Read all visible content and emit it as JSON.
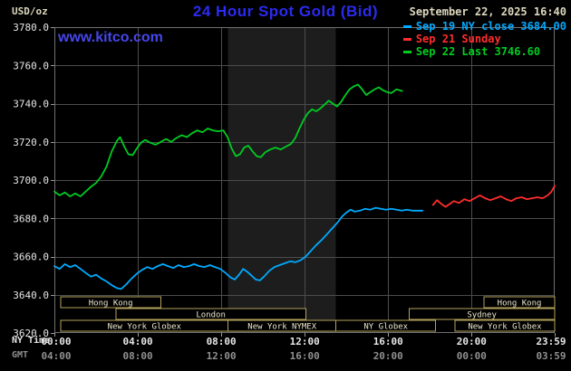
{
  "header": {
    "unit": "USD/oz",
    "title": "24 Hour Spot Gold (Bid)",
    "datetime": "September 22, 2025 16:40",
    "watermark": "www.kitco.com"
  },
  "legend": {
    "items": [
      {
        "label": "Sep 19 NY close 3684.00",
        "color": "#00aaff"
      },
      {
        "label": "Sep 21 Sunday",
        "color": "#ff2d2d"
      },
      {
        "label": "Sep 22 Last 3746.60",
        "color": "#00cc22"
      }
    ]
  },
  "axes": {
    "ny_label": "NY Time",
    "gmt_label": "GMT",
    "ny_ticks": [
      {
        "hour": 0,
        "label": "00:00"
      },
      {
        "hour": 4,
        "label": "04:00"
      },
      {
        "hour": 8,
        "label": "08:00"
      },
      {
        "hour": 12,
        "label": "12:00"
      },
      {
        "hour": 16,
        "label": "16:00"
      },
      {
        "hour": 20,
        "label": "20:00"
      },
      {
        "hour": 23.983,
        "label": "23:59"
      }
    ],
    "gmt_ticks": [
      {
        "hour": 0,
        "label": "04:00"
      },
      {
        "hour": 4,
        "label": "08:00"
      },
      {
        "hour": 8,
        "label": "12:00"
      },
      {
        "hour": 12,
        "label": "16:00"
      },
      {
        "hour": 16,
        "label": "20:00"
      },
      {
        "hour": 20,
        "label": "00:00"
      },
      {
        "hour": 23.983,
        "label": "03:59"
      }
    ],
    "y_ticks": [
      {
        "value": 3780,
        "label": "3780.0"
      },
      {
        "value": 3760,
        "label": "3760.0"
      },
      {
        "value": 3740,
        "label": "3740.0"
      },
      {
        "value": 3720,
        "label": "3720.0"
      },
      {
        "value": 3700,
        "label": "3700.0"
      },
      {
        "value": 3680,
        "label": "3680.0"
      },
      {
        "value": 3660,
        "label": "3660.0"
      },
      {
        "value": 3640,
        "label": "3640.0"
      },
      {
        "value": 3620,
        "label": "3620.0"
      }
    ]
  },
  "chart_data": {
    "type": "line",
    "title": "24 Hour Spot Gold (Bid)",
    "ylabel": "USD/oz",
    "xlim": [
      0,
      23.983
    ],
    "ylim": [
      3620,
      3780
    ],
    "y_gridline_step": 20,
    "grid_color": "#4c4c4c",
    "border_color": "#707070",
    "background": "#000000",
    "highlight_band": {
      "from_hour": 8.33,
      "to_hour": 13.5,
      "color": "#1d1d1d"
    },
    "session_box_color": "#b3a25c",
    "session_text_color": "#ece6cc",
    "series": [
      {
        "name": "Sep 19 NY close",
        "color": "#00aaff",
        "close_value": 3684.0,
        "points": [
          [
            0,
            3655
          ],
          [
            0.25,
            3653.5
          ],
          [
            0.5,
            3656
          ],
          [
            0.75,
            3654.5
          ],
          [
            1,
            3655.5
          ],
          [
            1.25,
            3653.5
          ],
          [
            1.5,
            3651.5
          ],
          [
            1.75,
            3649.5
          ],
          [
            2,
            3650.5
          ],
          [
            2.25,
            3648.5
          ],
          [
            2.5,
            3647
          ],
          [
            2.75,
            3645
          ],
          [
            3,
            3643.5
          ],
          [
            3.2,
            3643
          ],
          [
            3.45,
            3645.5
          ],
          [
            3.7,
            3648.5
          ],
          [
            3.95,
            3651
          ],
          [
            4.2,
            3653
          ],
          [
            4.45,
            3654.5
          ],
          [
            4.7,
            3653.5
          ],
          [
            4.95,
            3655
          ],
          [
            5.2,
            3656
          ],
          [
            5.45,
            3655
          ],
          [
            5.7,
            3654
          ],
          [
            5.95,
            3655.5
          ],
          [
            6.2,
            3654.5
          ],
          [
            6.45,
            3655
          ],
          [
            6.7,
            3656
          ],
          [
            6.95,
            3655
          ],
          [
            7.2,
            3654.5
          ],
          [
            7.45,
            3655.5
          ],
          [
            7.7,
            3654.5
          ],
          [
            7.95,
            3653.5
          ],
          [
            8.2,
            3651.5
          ],
          [
            8.45,
            3649
          ],
          [
            8.65,
            3648
          ],
          [
            8.85,
            3650.5
          ],
          [
            9.05,
            3653.5
          ],
          [
            9.25,
            3652
          ],
          [
            9.45,
            3650
          ],
          [
            9.65,
            3648
          ],
          [
            9.85,
            3647.5
          ],
          [
            10.05,
            3649.5
          ],
          [
            10.3,
            3652.5
          ],
          [
            10.55,
            3654.5
          ],
          [
            10.8,
            3655.5
          ],
          [
            11.05,
            3656.5
          ],
          [
            11.3,
            3657.5
          ],
          [
            11.55,
            3657
          ],
          [
            11.8,
            3658
          ],
          [
            12.05,
            3660
          ],
          [
            12.3,
            3663
          ],
          [
            12.55,
            3666
          ],
          [
            12.8,
            3668.5
          ],
          [
            13.05,
            3671.5
          ],
          [
            13.3,
            3674.5
          ],
          [
            13.55,
            3677.5
          ],
          [
            13.8,
            3681
          ],
          [
            14,
            3683
          ],
          [
            14.2,
            3684.5
          ],
          [
            14.4,
            3683.5
          ],
          [
            14.65,
            3684
          ],
          [
            14.9,
            3685
          ],
          [
            15.15,
            3684.5
          ],
          [
            15.4,
            3685.5
          ],
          [
            15.65,
            3685
          ],
          [
            15.9,
            3684.5
          ],
          [
            16.15,
            3685
          ],
          [
            16.4,
            3684.5
          ],
          [
            16.65,
            3684
          ],
          [
            16.9,
            3684.5
          ],
          [
            17.15,
            3684
          ],
          [
            17.4,
            3684
          ],
          [
            17.65,
            3684
          ]
        ]
      },
      {
        "name": "Sep 21 Sunday",
        "color": "#ff2d2d",
        "points": [
          [
            18.15,
            3687
          ],
          [
            18.35,
            3689.5
          ],
          [
            18.55,
            3687.5
          ],
          [
            18.75,
            3686
          ],
          [
            18.95,
            3687.5
          ],
          [
            19.15,
            3689
          ],
          [
            19.4,
            3688
          ],
          [
            19.65,
            3690
          ],
          [
            19.9,
            3689
          ],
          [
            20.15,
            3690.5
          ],
          [
            20.4,
            3692
          ],
          [
            20.65,
            3690.5
          ],
          [
            20.9,
            3689.5
          ],
          [
            21.15,
            3690.5
          ],
          [
            21.4,
            3691.5
          ],
          [
            21.65,
            3690
          ],
          [
            21.9,
            3689
          ],
          [
            22.15,
            3690.5
          ],
          [
            22.4,
            3691
          ],
          [
            22.65,
            3690
          ],
          [
            22.9,
            3690.5
          ],
          [
            23.15,
            3691
          ],
          [
            23.4,
            3690.5
          ],
          [
            23.65,
            3692
          ],
          [
            23.83,
            3694
          ],
          [
            23.983,
            3697
          ]
        ]
      },
      {
        "name": "Sep 22",
        "color": "#00cc22",
        "last_value": 3746.6,
        "points": [
          [
            0,
            3694
          ],
          [
            0.25,
            3692
          ],
          [
            0.5,
            3693.5
          ],
          [
            0.75,
            3691.5
          ],
          [
            1,
            3693
          ],
          [
            1.25,
            3691.5
          ],
          [
            1.5,
            3694
          ],
          [
            1.75,
            3696.5
          ],
          [
            2,
            3698.5
          ],
          [
            2.25,
            3702
          ],
          [
            2.5,
            3707
          ],
          [
            2.75,
            3715
          ],
          [
            3,
            3720.5
          ],
          [
            3.15,
            3722.5
          ],
          [
            3.35,
            3717.5
          ],
          [
            3.55,
            3713.5
          ],
          [
            3.75,
            3713
          ],
          [
            3.95,
            3716.5
          ],
          [
            4.15,
            3719.5
          ],
          [
            4.35,
            3721
          ],
          [
            4.6,
            3719.5
          ],
          [
            4.85,
            3718.5
          ],
          [
            5.1,
            3720
          ],
          [
            5.35,
            3721.5
          ],
          [
            5.6,
            3720
          ],
          [
            5.85,
            3722
          ],
          [
            6.1,
            3723.5
          ],
          [
            6.35,
            3722.5
          ],
          [
            6.6,
            3724.5
          ],
          [
            6.85,
            3726
          ],
          [
            7.1,
            3725
          ],
          [
            7.35,
            3727
          ],
          [
            7.6,
            3726
          ],
          [
            7.85,
            3725.5
          ],
          [
            8.1,
            3726
          ],
          [
            8.3,
            3722.5
          ],
          [
            8.5,
            3716.5
          ],
          [
            8.7,
            3712.5
          ],
          [
            8.9,
            3713.5
          ],
          [
            9.1,
            3717
          ],
          [
            9.3,
            3718
          ],
          [
            9.5,
            3715
          ],
          [
            9.7,
            3712.5
          ],
          [
            9.9,
            3712
          ],
          [
            10.1,
            3714.5
          ],
          [
            10.35,
            3716
          ],
          [
            10.6,
            3717
          ],
          [
            10.85,
            3716
          ],
          [
            11.1,
            3717.5
          ],
          [
            11.35,
            3719
          ],
          [
            11.55,
            3722
          ],
          [
            11.75,
            3727
          ],
          [
            11.95,
            3731.5
          ],
          [
            12.15,
            3735
          ],
          [
            12.35,
            3737
          ],
          [
            12.55,
            3736
          ],
          [
            12.75,
            3737.5
          ],
          [
            12.95,
            3739.5
          ],
          [
            13.15,
            3741.5
          ],
          [
            13.35,
            3740
          ],
          [
            13.55,
            3738.5
          ],
          [
            13.75,
            3741
          ],
          [
            13.95,
            3744.5
          ],
          [
            14.15,
            3747.5
          ],
          [
            14.35,
            3749
          ],
          [
            14.55,
            3750
          ],
          [
            14.75,
            3747.5
          ],
          [
            14.95,
            3744.5
          ],
          [
            15.15,
            3746
          ],
          [
            15.35,
            3747.5
          ],
          [
            15.55,
            3748.5
          ],
          [
            15.75,
            3747
          ],
          [
            15.95,
            3746
          ],
          [
            16.15,
            3745.5
          ],
          [
            16.4,
            3747.5
          ],
          [
            16.67,
            3746.6
          ]
        ]
      }
    ],
    "sessions": [
      {
        "row": 0,
        "label": "Hong Kong",
        "from_hour": 0.3,
        "to_hour": 5.1
      },
      {
        "row": 0,
        "label": "Hong Kong",
        "from_hour": 20.6,
        "to_hour": 23.983
      },
      {
        "row": 1,
        "label": "London",
        "from_hour": 2.95,
        "to_hour": 12.05
      },
      {
        "row": 1,
        "label": "Sydney",
        "from_hour": 17.0,
        "to_hour": 23.983
      },
      {
        "row": 2,
        "label": "New York Globex",
        "from_hour": 0.3,
        "to_hour": 8.33
      },
      {
        "row": 2,
        "label": "New York NYMEX",
        "from_hour": 8.33,
        "to_hour": 13.5
      },
      {
        "row": 2,
        "label": "NY Globex",
        "from_hour": 13.5,
        "to_hour": 18.28
      },
      {
        "row": 2,
        "label": "New York Globex",
        "from_hour": 19.2,
        "to_hour": 23.983
      }
    ]
  }
}
